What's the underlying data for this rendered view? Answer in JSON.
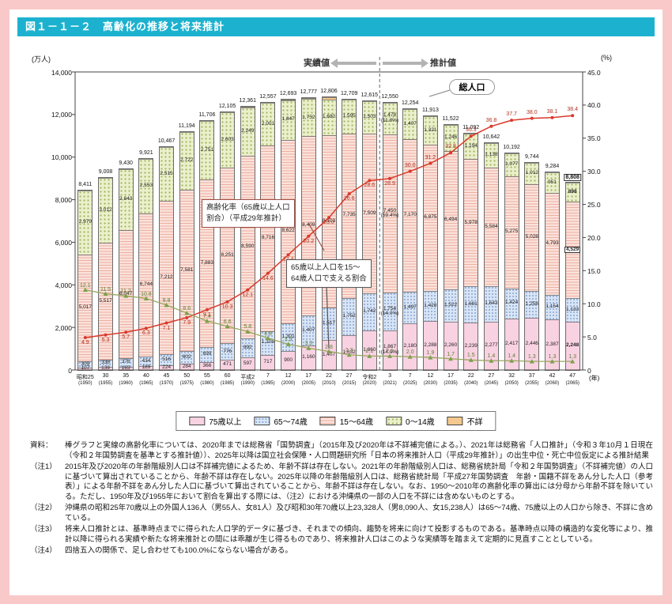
{
  "page": {
    "title": "図１－１－２　高齢化の推移と将来推計"
  },
  "axis": {
    "left_unit": "(万人)",
    "right_unit": "(%)",
    "year_unit": "(年)"
  },
  "annotations": {
    "actual": "実績値",
    "projection": "推計値",
    "total_pop": "総人口",
    "aging_rate_box": [
      "高齢化率（65歳以上人口",
      "割合）（平成29年推計）"
    ],
    "support_box": [
      "65歳以上人口を15〜",
      "64歳人口で支える割合"
    ]
  },
  "legend": [
    {
      "label": "75歳以上",
      "color": "#f9d2e2"
    },
    {
      "label": "65〜74歳",
      "color": "#d9e5f6"
    },
    {
      "label": "15〜64歳",
      "color": "#fae2db"
    },
    {
      "label": "0〜14歳",
      "color": "#ebf0cc"
    },
    {
      "label": "不詳",
      "color": "#f5c88d"
    }
  ],
  "colors": {
    "title_bar": "#1cb2cf",
    "page_border": "#f9c9c9",
    "aging_rate_line": "#d93a2b",
    "support_ratio_line": "#7da04c"
  },
  "chart_data": {
    "type": "bar",
    "subtype": "stacked-bar-with-lines",
    "title": "高齢化の推移と将来推計",
    "ylim_left": [
      0,
      14000
    ],
    "ylim_right": [
      0,
      45
    ],
    "boundary_index_after": 14,
    "x_era": [
      "昭和25",
      "30",
      "35",
      "40",
      "45",
      "50",
      "55",
      "60",
      "平成2",
      "7",
      "12",
      "17",
      "22",
      "27",
      "令和2",
      "3",
      "7",
      "12",
      "17",
      "22",
      "27",
      "32",
      "37",
      "42",
      "47"
    ],
    "x_year": [
      "(1950)",
      "(1955)",
      "(1960)",
      "(1965)",
      "(1970)",
      "(1975)",
      "(1980)",
      "(1985)",
      "(1990)",
      "(1995)",
      "(2000)",
      "(2005)",
      "(2010)",
      "(2015)",
      "(2020)",
      "(2021)",
      "(2025)",
      "(2030)",
      "(2035)",
      "(2040)",
      "(2045)",
      "(2050)",
      "(2055)",
      "(2060)",
      "(2065)"
    ],
    "totals": [
      8411,
      9008,
      9430,
      9921,
      10467,
      11194,
      11706,
      12105,
      12361,
      12557,
      12693,
      12777,
      12806,
      12709,
      12615,
      12550,
      12254,
      11913,
      11522,
      11092,
      10642,
      10192,
      9744,
      9284,
      8808
    ],
    "series": [
      {
        "name": "75歳以上",
        "values": [
          107,
          139,
          163,
          189,
          224,
          284,
          366,
          471,
          597,
          717,
          900,
          1160,
          1407,
          1632,
          1860,
          1867,
          2180,
          2288,
          2260,
          2239,
          2277,
          2417,
          2446,
          2387,
          2248
        ]
      },
      {
        "name": "65〜74歳",
        "values": [
          309,
          338,
          376,
          434,
          516,
          602,
          699,
          776,
          892,
          1109,
          1301,
          1407,
          1517,
          1752,
          1742,
          1754,
          1497,
          1428,
          1522,
          1681,
          1643,
          1424,
          1258,
          1154,
          1133
        ]
      },
      {
        "name": "15〜64歳",
        "values": [
          5017,
          5517,
          6047,
          6744,
          7212,
          7581,
          7883,
          8251,
          8590,
          8716,
          8622,
          8409,
          8103,
          7735,
          7509,
          7450,
          7170,
          6875,
          6494,
          5978,
          5584,
          5275,
          5028,
          4793,
          4529
        ]
      },
      {
        "name": "0〜14歳",
        "values": [
          2979,
          3012,
          2843,
          2553,
          2515,
          2722,
          2751,
          2603,
          2249,
          2001,
          1847,
          1752,
          1680,
          1595,
          1503,
          1478,
          1407,
          1321,
          1246,
          1194,
          1138,
          1077,
          1012,
          951,
          898
        ]
      },
      {
        "name": "不詳",
        "values": [
          0,
          2,
          1,
          1,
          0,
          5,
          7,
          4,
          33,
          14,
          23,
          49,
          99,
          0,
          0,
          0,
          0,
          0,
          0,
          0,
          0,
          0,
          0,
          0,
          0
        ]
      }
    ],
    "lines": [
      {
        "name": "高齢化率（65歳以上人口割合）（平成29年推計）",
        "axis": "right",
        "values": [
          4.9,
          5.3,
          5.7,
          6.3,
          7.1,
          7.9,
          9.1,
          10.3,
          12.1,
          14.6,
          17.4,
          20.2,
          23.0,
          26.6,
          28.6,
          28.9,
          30.0,
          31.2,
          32.8,
          35.3,
          36.8,
          37.7,
          38.0,
          38.1,
          38.4
        ]
      },
      {
        "name": "65歳以上人口を15〜64歳人口で支える割合",
        "axis": "right",
        "values": [
          12.1,
          11.5,
          11.2,
          10.8,
          9.8,
          8.6,
          7.4,
          6.6,
          5.8,
          4.8,
          3.9,
          3.3,
          2.8,
          2.3,
          2.1,
          2.1,
          2.0,
          1.9,
          1.7,
          1.5,
          1.4,
          1.4,
          1.3,
          1.3,
          1.3
        ]
      }
    ],
    "pct_2021": {
      "p75": "(14.9%)",
      "p6574": "(14.0%)",
      "p1564": "(59.4%)",
      "p014": "(11.8%)"
    }
  },
  "notes": [
    {
      "label": "資料：",
      "text": "棒グラフと実線の高齢化率については、2020年までは総務省「国勢調査」（2015年及び2020年は不詳補完値による。）、2021年は総務省「人口推計」（令和３年10月１日現在（令和２年国勢調査を基準とする推計値））、2025年以降は国立社会保障・人口問題研究所「日本の将来推計人口（平成29年推計）」の出生中位・死亡中位仮定による推計結果"
    },
    {
      "label": "（注1）",
      "text": "2015年及び2020年の年齢階級別人口は不詳補完値によるため、年齢不詳は存在しない。2021年の年齢階級別人口は、総務省統計局「令和２年国勢調査」（不詳補完値）の人口に基づいて算出されていることから、年齢不詳は存在しない。2025年以降の年齢階級別人口は、総務省統計局「平成27年国勢調査　年齢・国籍不詳をあん分した人口（参考表）」による年齢不詳をあん分した人口に基づいて算出されていることから、年齢不詳は存在しない。なお、1950〜2010年の高齢化率の算出には分母から年齢不詳を除いている。ただし、1950年及び1955年において割合を算出する際には、（注2）における沖縄県の一部の人口を不詳には含めないものとする。"
    },
    {
      "label": "（注2）",
      "text": "沖縄県の昭和25年70歳以上の外国人136人（男55人、女81人）及び昭和30年70歳以上23,328人（男8,090人、女15,238人）は65〜74歳、75歳以上の人口から除き、不詳に含めている。"
    },
    {
      "label": "（注3）",
      "text": "将来人口推計とは、基準時点までに得られた人口学的データに基づき、それまでの傾向、趨勢を将来に向けて投影するものである。基準時点以降の構造的な変化等により、推計以降に得られる実績や新たな将来推計との間には乖離が生じ得るものであり、将来推計人口はこのような実績等を踏まえて定期的に見直すこととしている。"
    },
    {
      "label": "（注4）",
      "text": "四捨五入の関係で、足し合わせても100.0%にならない場合がある。"
    }
  ]
}
